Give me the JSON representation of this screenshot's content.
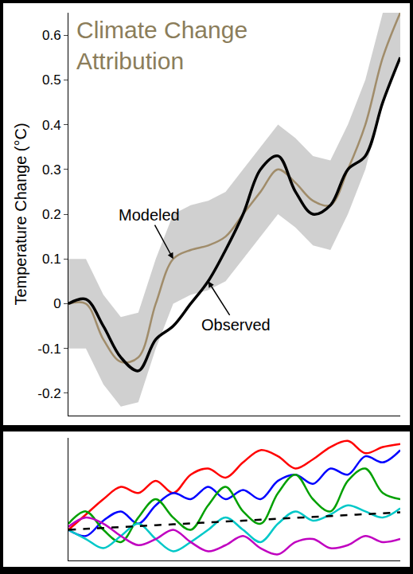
{
  "chart_data": [
    {
      "type": "line",
      "title": "Climate Change Attribution",
      "y_label": "Temperature Change (°C)",
      "x": [
        0,
        1,
        2,
        3,
        4,
        5,
        6,
        7,
        8,
        9,
        10,
        11,
        12,
        13,
        14,
        15,
        16,
        17,
        18,
        19
      ],
      "xlim": [
        0,
        19
      ],
      "ylim": [
        -0.25,
        0.65
      ],
      "yticks": [
        -0.2,
        -0.1,
        0,
        0.1,
        0.2,
        0.3,
        0.4,
        0.5,
        0.6
      ],
      "tick_labels": "y",
      "grid": false,
      "series": [
        {
          "name": "Modeled",
          "color": "#a08c6a",
          "line_style": "solid",
          "values": [
            0.0,
            0.0,
            -0.08,
            -0.13,
            -0.12,
            0.0,
            0.1,
            0.12,
            0.13,
            0.15,
            0.2,
            0.25,
            0.3,
            0.27,
            0.23,
            0.22,
            0.3,
            0.4,
            0.55,
            0.65
          ],
          "lower": [
            -0.1,
            -0.1,
            -0.18,
            -0.23,
            -0.22,
            -0.1,
            0.0,
            0.02,
            0.03,
            0.05,
            0.1,
            0.15,
            0.2,
            0.17,
            0.13,
            0.12,
            0.2,
            0.3,
            0.45,
            0.55
          ],
          "upper": [
            0.1,
            0.1,
            0.02,
            -0.03,
            -0.02,
            0.1,
            0.2,
            0.22,
            0.23,
            0.25,
            0.3,
            0.35,
            0.4,
            0.37,
            0.33,
            0.32,
            0.4,
            0.5,
            0.65,
            0.65
          ]
        },
        {
          "name": "Observed",
          "color": "#000000",
          "line_style": "solid",
          "values": [
            0.0,
            0.01,
            -0.05,
            -0.12,
            -0.15,
            -0.08,
            -0.05,
            0.0,
            0.05,
            0.12,
            0.2,
            0.3,
            0.33,
            0.25,
            0.2,
            0.22,
            0.3,
            0.33,
            0.45,
            0.55
          ]
        }
      ],
      "annotations": [
        {
          "text": "Modeled",
          "x": 6,
          "y": 0.1
        },
        {
          "text": "Observed",
          "x": 8,
          "y": 0.05
        }
      ]
    },
    {
      "type": "line",
      "x": [
        0,
        1,
        2,
        3,
        4,
        5,
        6,
        7,
        8,
        9,
        10,
        11,
        12,
        13,
        14,
        15,
        16,
        17,
        18,
        19
      ],
      "xlim": [
        0,
        19
      ],
      "ylim": [
        -0.1,
        0.3
      ],
      "tick_labels": false,
      "grid": false,
      "series": [
        {
          "color": "#ff0000",
          "line_style": "solid",
          "values": [
            0.0,
            0.05,
            0.1,
            0.14,
            0.12,
            0.16,
            0.12,
            0.18,
            0.2,
            0.17,
            0.22,
            0.26,
            0.24,
            0.2,
            0.23,
            0.27,
            0.29,
            0.25,
            0.27,
            0.28
          ]
        },
        {
          "color": "#0000ff",
          "line_style": "solid",
          "values": [
            0.0,
            -0.02,
            0.03,
            0.06,
            0.02,
            0.08,
            0.12,
            0.1,
            0.14,
            0.1,
            0.13,
            0.1,
            0.16,
            0.18,
            0.15,
            0.2,
            0.18,
            0.24,
            0.22,
            0.26
          ]
        },
        {
          "color": "#00a000",
          "line_style": "solid",
          "values": [
            0.02,
            0.06,
            0.0,
            -0.04,
            0.04,
            0.1,
            0.04,
            0.0,
            0.08,
            0.14,
            0.06,
            0.02,
            0.12,
            0.18,
            0.1,
            0.06,
            0.16,
            0.2,
            0.12,
            0.1
          ]
        },
        {
          "color": "#00c8c8",
          "line_style": "solid",
          "values": [
            0.0,
            -0.03,
            -0.06,
            -0.02,
            0.02,
            -0.03,
            -0.07,
            -0.04,
            0.0,
            0.04,
            0.0,
            -0.04,
            0.02,
            0.06,
            0.03,
            0.05,
            0.08,
            0.06,
            0.04,
            0.07
          ]
        },
        {
          "color": "#c000c0",
          "line_style": "solid",
          "values": [
            0.01,
            0.04,
            0.02,
            -0.02,
            -0.05,
            -0.03,
            0.0,
            -0.04,
            -0.07,
            -0.05,
            -0.02,
            -0.06,
            -0.08,
            -0.04,
            -0.03,
            -0.06,
            -0.05,
            -0.02,
            -0.04,
            -0.03
          ]
        },
        {
          "color": "#000000",
          "line_style": "dash",
          "values": [
            0.0,
            0.003,
            0.006,
            0.009,
            0.012,
            0.015,
            0.018,
            0.021,
            0.024,
            0.027,
            0.03,
            0.033,
            0.036,
            0.039,
            0.042,
            0.045,
            0.048,
            0.051,
            0.054,
            0.057
          ]
        }
      ]
    }
  ]
}
